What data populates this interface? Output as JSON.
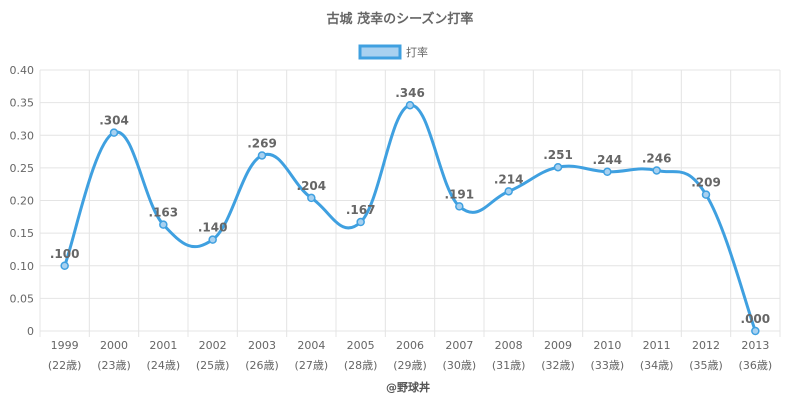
{
  "chart_data": {
    "type": "line",
    "title": "古城 茂幸のシーズン打率",
    "legend": {
      "label": "打率",
      "position": "top",
      "color": "#3fa0e0"
    },
    "categories": [
      "1999",
      "2000",
      "2001",
      "2002",
      "2003",
      "2004",
      "2005",
      "2006",
      "2007",
      "2008",
      "2009",
      "2010",
      "2011",
      "2012",
      "2013"
    ],
    "sub_categories": [
      "(22歳)",
      "(23歳)",
      "(24歳)",
      "(25歳)",
      "(26歳)",
      "(27歳)",
      "(28歳)",
      "(29歳)",
      "(30歳)",
      "(31歳)",
      "(32歳)",
      "(33歳)",
      "(34歳)",
      "(35歳)",
      "(36歳)"
    ],
    "series": [
      {
        "name": "打率",
        "values": [
          0.1,
          0.304,
          0.163,
          0.14,
          0.269,
          0.204,
          0.167,
          0.346,
          0.191,
          0.214,
          0.251,
          0.244,
          0.246,
          0.209,
          0.0
        ],
        "value_labels": [
          ".100",
          ".304",
          ".163",
          ".140",
          ".269",
          ".204",
          ".167",
          ".346",
          ".191",
          ".214",
          ".251",
          ".244",
          ".246",
          ".209",
          ".000"
        ]
      }
    ],
    "ylim": [
      0,
      0.4
    ],
    "yticks": [
      0,
      0.05,
      0.1,
      0.15,
      0.2,
      0.25,
      0.3,
      0.35,
      0.4
    ],
    "ytick_labels": [
      "0",
      "0.05",
      "0.10",
      "0.15",
      "0.20",
      "0.25",
      "0.30",
      "0.35",
      "0.40"
    ],
    "grid": true,
    "line_color": "#3fa0e0",
    "footer": "@野球丼"
  }
}
